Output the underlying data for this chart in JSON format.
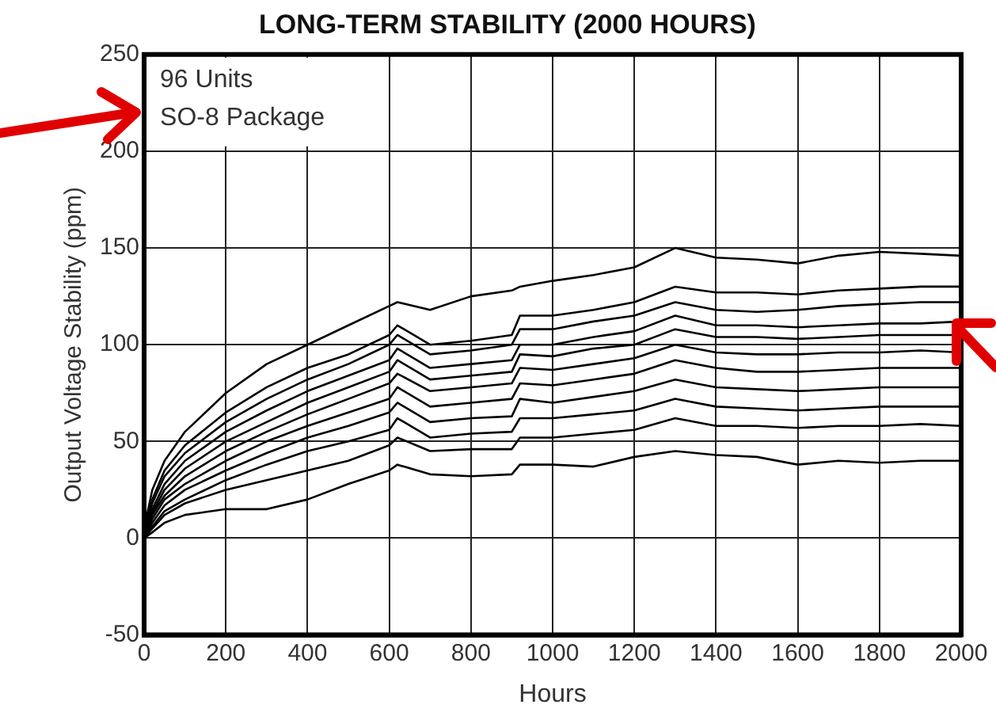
{
  "chart_data": {
    "type": "line",
    "title": "LONG-TERM STABILITY (2000 HOURS)",
    "xlabel": "Hours",
    "ylabel": "Output Voltage Stability (ppm)",
    "annotations": [
      "96 Units",
      "SO-8 Package"
    ],
    "x": [
      0,
      20,
      50,
      100,
      200,
      300,
      400,
      500,
      600,
      620,
      700,
      800,
      900,
      920,
      1000,
      1100,
      1200,
      1300,
      1400,
      1500,
      1600,
      1700,
      1800,
      1900,
      2000
    ],
    "xlim": [
      0,
      2000
    ],
    "xticks": [
      0,
      200,
      400,
      600,
      800,
      1000,
      1200,
      1400,
      1600,
      1800,
      2000
    ],
    "ylim": [
      -50,
      250
    ],
    "yticks": [
      -50,
      0,
      50,
      100,
      150,
      200,
      250
    ],
    "grid": true,
    "legend": false,
    "marker": "none",
    "line_style": "solid",
    "series": [
      {
        "color": "#000000",
        "values": [
          5,
          25,
          40,
          55,
          75,
          90,
          100,
          110,
          120,
          122,
          118,
          125,
          128,
          130,
          133,
          136,
          140,
          150,
          145,
          144,
          142,
          146,
          148,
          147,
          146
        ]
      },
      {
        "color": "#000000",
        "values": [
          3,
          20,
          35,
          48,
          65,
          78,
          88,
          95,
          105,
          110,
          100,
          102,
          105,
          115,
          115,
          118,
          122,
          130,
          127,
          127,
          126,
          128,
          129,
          130,
          130
        ]
      },
      {
        "color": "#000000",
        "values": [
          2,
          18,
          32,
          44,
          60,
          72,
          82,
          90,
          100,
          105,
          95,
          97,
          100,
          108,
          108,
          112,
          115,
          122,
          118,
          117,
          118,
          120,
          121,
          122,
          122
        ]
      },
      {
        "color": "#000000",
        "values": [
          2,
          15,
          28,
          40,
          55,
          66,
          76,
          84,
          92,
          98,
          88,
          90,
          92,
          100,
          100,
          104,
          107,
          115,
          110,
          110,
          109,
          110,
          111,
          111,
          112
        ]
      },
      {
        "color": "#000000",
        "values": [
          1,
          13,
          25,
          36,
          50,
          60,
          70,
          78,
          86,
          92,
          82,
          84,
          86,
          95,
          94,
          98,
          100,
          108,
          104,
          104,
          103,
          104,
          105,
          105,
          105
        ]
      },
      {
        "color": "#000000",
        "values": [
          1,
          12,
          22,
          32,
          45,
          55,
          64,
          72,
          80,
          85,
          76,
          78,
          80,
          88,
          87,
          90,
          93,
          100,
          96,
          95,
          95,
          96,
          96,
          97,
          96
        ]
      },
      {
        "color": "#000000",
        "values": [
          0,
          10,
          20,
          28,
          40,
          50,
          58,
          65,
          72,
          78,
          68,
          70,
          72,
          80,
          79,
          82,
          85,
          92,
          88,
          86,
          86,
          87,
          88,
          88,
          88
        ]
      },
      {
        "color": "#000000",
        "values": [
          0,
          8,
          17,
          25,
          35,
          44,
          52,
          58,
          65,
          70,
          60,
          62,
          63,
          72,
          70,
          73,
          76,
          82,
          78,
          77,
          76,
          77,
          78,
          78,
          78
        ]
      },
      {
        "color": "#000000",
        "values": [
          0,
          6,
          14,
          20,
          30,
          38,
          45,
          50,
          56,
          62,
          52,
          54,
          55,
          62,
          62,
          64,
          66,
          72,
          68,
          67,
          66,
          67,
          68,
          68,
          68
        ]
      },
      {
        "color": "#000000",
        "values": [
          0,
          5,
          12,
          18,
          25,
          30,
          35,
          40,
          48,
          52,
          45,
          46,
          46,
          52,
          52,
          54,
          56,
          62,
          58,
          58,
          57,
          58,
          58,
          59,
          58
        ]
      },
      {
        "color": "#000000",
        "values": [
          0,
          3,
          8,
          12,
          15,
          15,
          20,
          28,
          35,
          38,
          33,
          32,
          33,
          38,
          38,
          37,
          42,
          45,
          43,
          42,
          38,
          40,
          39,
          40,
          40
        ]
      }
    ]
  }
}
